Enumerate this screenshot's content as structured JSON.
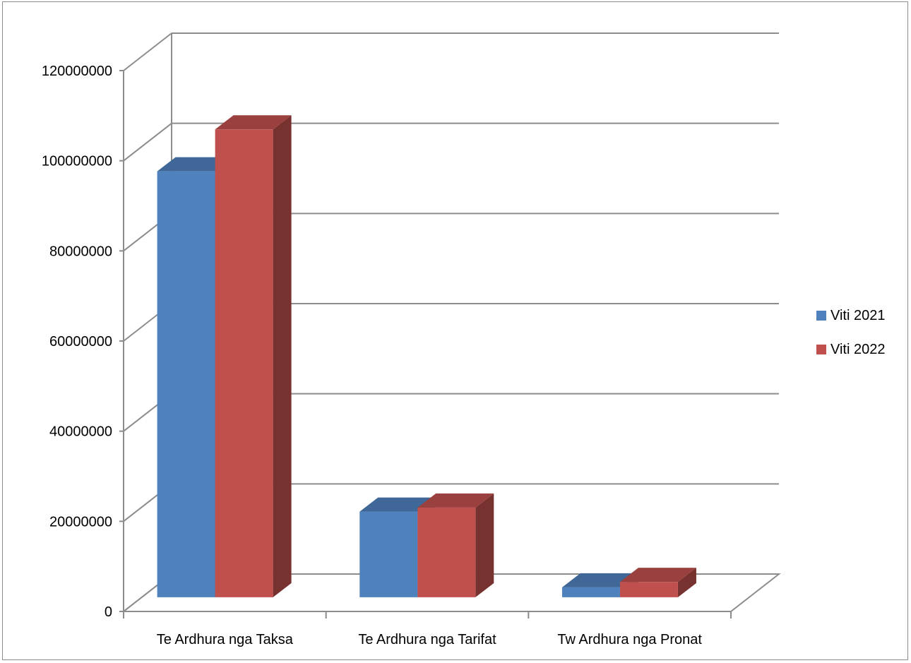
{
  "chart_data": {
    "type": "bar",
    "style": "3d-clustered-column",
    "title": "",
    "xlabel": "",
    "ylabel": "",
    "categories": [
      "Te Ardhura nga Taksa",
      "Te Ardhura nga Tarifat",
      "Tw Ardhura nga Pronat"
    ],
    "series": [
      {
        "name": "Viti 2021",
        "color": "#4F81BD",
        "values": [
          94500000,
          19000000,
          2200000
        ]
      },
      {
        "name": "Viti 2022",
        "color": "#C0504D",
        "values": [
          103800000,
          19900000,
          3400000
        ]
      }
    ],
    "ylim": [
      0,
      120000000
    ],
    "y_ticks": [
      "0",
      "20000000",
      "40000000",
      "60000000",
      "80000000",
      "100000000",
      "120000000"
    ],
    "grid": true,
    "legend_position": "right"
  }
}
